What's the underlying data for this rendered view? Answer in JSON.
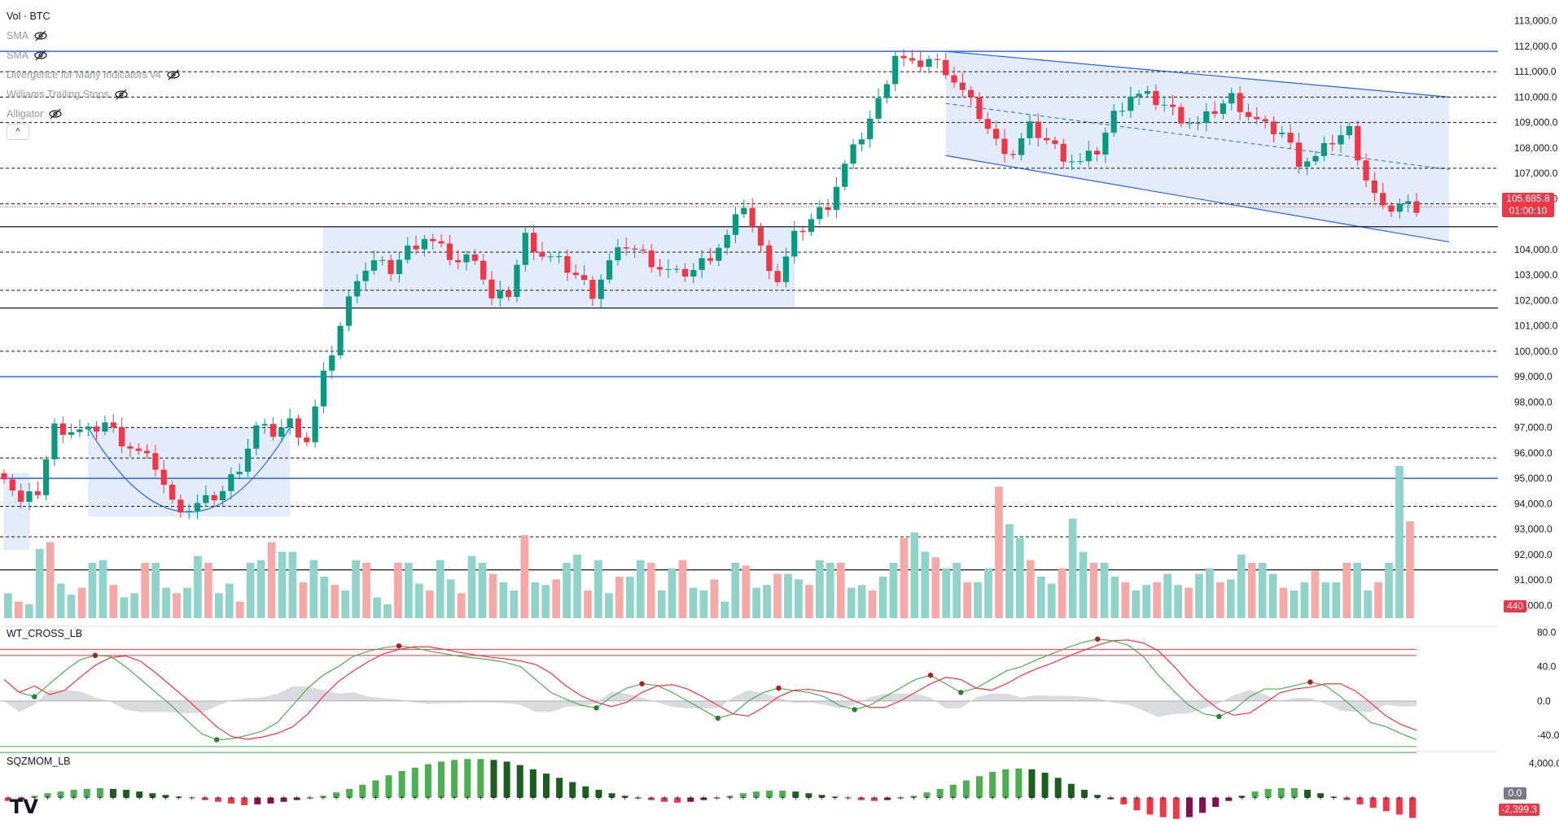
{
  "legend": {
    "main_label": "Vol · BTC",
    "indicators": [
      "SMA",
      "SMA",
      "Divergence for Many Indicators v4",
      "Williams Trailing Stops",
      "Alligator"
    ],
    "collapse_symbol": "^"
  },
  "price_axis": {
    "ticks": [
      "113,000.0",
      "112,000.0",
      "111,000.0",
      "110,000.0",
      "109,000.0",
      "108,000.0",
      "107,000.0",
      "106,000.0",
      "104,000.0",
      "103,000.0",
      "102,000.0",
      "101,000.0",
      "100,000.0",
      "99,000.0",
      "98,000.0",
      "97,000.0",
      "96,000.0",
      "95,000.0",
      "94,000.0",
      "93,000.0",
      "92,000.0",
      "91,000.0",
      "90,000.0"
    ],
    "tick_values": [
      113000,
      112000,
      111000,
      110000,
      109000,
      108000,
      107000,
      106000,
      104000,
      103000,
      102000,
      101000,
      100000,
      99000,
      98000,
      97000,
      96000,
      95000,
      94000,
      93000,
      92000,
      91000,
      90000
    ]
  },
  "last_price": {
    "value": "105,685.8",
    "countdown": "01:00:10",
    "price": 105685.8,
    "color": "#f23645"
  },
  "volume_badge": "440",
  "wt_pane": {
    "title": "WT_CROSS_LB",
    "ticks": [
      "80.0",
      "40.0",
      "0.0",
      "-40.0"
    ],
    "tick_values": [
      80,
      40,
      0,
      -40
    ]
  },
  "sqz_pane": {
    "title": "SQZMOM_LB",
    "ticks": [
      "4,000.0"
    ],
    "badge_zero": "0.0",
    "badge_last": "-2,399.3"
  },
  "logo_text": "TV",
  "colors": {
    "up": "#089981",
    "down": "#f23645",
    "zone_fill": "#cfe0f8",
    "hline_blue": "#2962ff"
  },
  "chart_data": [
    {
      "type": "candlestick",
      "title": "Vol · BTC",
      "ylim": [
        89500,
        113500
      ],
      "horizontal_levels_solid_blue": [
        111800,
        99000,
        95000
      ],
      "horizontal_levels_solid_black": [
        104900,
        101700,
        91400
      ],
      "horizontal_levels_dashed": [
        111000,
        110000,
        109000,
        107200,
        105800,
        103900,
        102400,
        100000,
        97000,
        95800,
        93900,
        92700
      ],
      "price_path": [
        [
          0,
          95200
        ],
        [
          2,
          94000
        ],
        [
          4,
          94500
        ],
        [
          6,
          97000
        ],
        [
          8,
          96900
        ],
        [
          10,
          96800
        ],
        [
          12,
          97200
        ],
        [
          14,
          96500
        ],
        [
          16,
          96000
        ],
        [
          18,
          95500
        ],
        [
          20,
          94000
        ],
        [
          22,
          93800
        ],
        [
          24,
          94100
        ],
        [
          26,
          94500
        ],
        [
          28,
          95500
        ],
        [
          30,
          97000
        ],
        [
          32,
          96800
        ],
        [
          34,
          97200
        ],
        [
          36,
          96500
        ],
        [
          38,
          99000
        ],
        [
          40,
          101000
        ],
        [
          42,
          103000
        ],
        [
          44,
          103500
        ],
        [
          46,
          103200
        ],
        [
          48,
          104000
        ],
        [
          50,
          104500
        ],
        [
          52,
          104000
        ],
        [
          54,
          103500
        ],
        [
          56,
          103800
        ],
        [
          58,
          102000
        ],
        [
          60,
          102300
        ],
        [
          62,
          104500
        ],
        [
          64,
          103800
        ],
        [
          66,
          103500
        ],
        [
          68,
          103000
        ],
        [
          70,
          102300
        ],
        [
          72,
          103500
        ],
        [
          74,
          104200
        ],
        [
          76,
          103800
        ],
        [
          78,
          103300
        ],
        [
          80,
          103000
        ],
        [
          82,
          103200
        ],
        [
          84,
          103800
        ],
        [
          86,
          104500
        ],
        [
          88,
          105800
        ],
        [
          90,
          104000
        ],
        [
          92,
          102800
        ],
        [
          94,
          104500
        ],
        [
          96,
          105200
        ],
        [
          98,
          105800
        ],
        [
          100,
          107300
        ],
        [
          102,
          108500
        ],
        [
          104,
          109800
        ],
        [
          106,
          111700
        ],
        [
          108,
          111200
        ],
        [
          110,
          111500
        ],
        [
          112,
          111100
        ],
        [
          114,
          110200
        ],
        [
          116,
          109300
        ],
        [
          118,
          108200
        ],
        [
          120,
          107800
        ],
        [
          122,
          108800
        ],
        [
          124,
          108300
        ],
        [
          126,
          107700
        ],
        [
          128,
          107400
        ],
        [
          130,
          107900
        ],
        [
          132,
          109300
        ],
        [
          134,
          110100
        ],
        [
          136,
          110000
        ],
        [
          138,
          109700
        ],
        [
          140,
          109200
        ],
        [
          142,
          108900
        ],
        [
          144,
          109500
        ],
        [
          146,
          110000
        ],
        [
          148,
          109300
        ],
        [
          150,
          108800
        ],
        [
          152,
          108600
        ],
        [
          154,
          107500
        ],
        [
          156,
          107600
        ],
        [
          158,
          108300
        ],
        [
          160,
          108700
        ],
        [
          162,
          106800
        ],
        [
          164,
          105500
        ],
        [
          166,
          105800
        ],
        [
          168,
          105686
        ]
      ],
      "zones": [
        {
          "label": "range-left",
          "from": 0,
          "to": 3,
          "low": 92200,
          "high": 95200
        },
        {
          "label": "cup",
          "from": 10,
          "to": 34,
          "low": 93500,
          "high": 97000
        },
        {
          "label": "range-mid",
          "from": 38,
          "to": 94,
          "low": 101700,
          "high": 104900
        },
        {
          "label": "channel",
          "from": 112,
          "to": 168,
          "low": 104700,
          "high": 111800
        }
      ],
      "volume": [
        18,
        12,
        10,
        50,
        55,
        25,
        17,
        22,
        40,
        42,
        24,
        15,
        18,
        40,
        40,
        22,
        18,
        22,
        45,
        40,
        18,
        25,
        12,
        40,
        42,
        55,
        48,
        48,
        26,
        42,
        30,
        24,
        20,
        42,
        40,
        15,
        10,
        40,
        40,
        25,
        20,
        42,
        28,
        18,
        45,
        40,
        32,
        26,
        20,
        60,
        26,
        24,
        28,
        40,
        46,
        20,
        42,
        18,
        30,
        30,
        42,
        40,
        20,
        36,
        42,
        22,
        20,
        28,
        12,
        40,
        38,
        22,
        24,
        32,
        32,
        28,
        24,
        42,
        40,
        40,
        22,
        24,
        20,
        30,
        40,
        58,
        62,
        48,
        44,
        36,
        40,
        26,
        26,
        36,
        95,
        68,
        58,
        42,
        30,
        25,
        36,
        72,
        48,
        40,
        40,
        30,
        26,
        20,
        24,
        26,
        32,
        24,
        22,
        32,
        36,
        26,
        28,
        46,
        40,
        40,
        32,
        22,
        20,
        26,
        34,
        26,
        26,
        40,
        40,
        20,
        26,
        40,
        110,
        70
      ]
    },
    {
      "type": "line",
      "title": "WT_CROSS_LB",
      "ylim": [
        -55,
        85
      ],
      "series": [
        {
          "values": [
            25,
            10,
            5,
            20,
            35,
            48,
            53,
            52,
            40,
            25,
            10,
            -5,
            -22,
            -38,
            -45,
            -44,
            -40,
            -35,
            -25,
            -5,
            15,
            30,
            40,
            52,
            58,
            62,
            64,
            62,
            58,
            55,
            52,
            50,
            48,
            45,
            40,
            25,
            10,
            2,
            -5,
            -8,
            5,
            15,
            20,
            18,
            10,
            0,
            -10,
            -20,
            -15,
            0,
            10,
            15,
            12,
            10,
            5,
            -5,
            -10,
            -5,
            5,
            15,
            25,
            30,
            20,
            10,
            15,
            25,
            35,
            40,
            48,
            55,
            62,
            68,
            72,
            70,
            65,
            52,
            30,
            12,
            -5,
            -15,
            -18,
            -10,
            5,
            14,
            14,
            18,
            22,
            18,
            5,
            -10,
            -25,
            -30,
            -38,
            -45
          ]
        }
      ]
    },
    {
      "type": "bar",
      "title": "SQZMOM_LB",
      "ylim": [
        -3000,
        5000
      ],
      "values": [
        -400,
        -200,
        200,
        500,
        700,
        900,
        1000,
        1100,
        1000,
        900,
        700,
        500,
        300,
        100,
        -100,
        -300,
        -500,
        -700,
        -900,
        -800,
        -700,
        -500,
        -300,
        -100,
        200,
        600,
        1000,
        1500,
        2000,
        2600,
        3100,
        3500,
        3900,
        4200,
        4400,
        4500,
        4500,
        4400,
        4200,
        3800,
        3300,
        2800,
        2300,
        1800,
        1300,
        900,
        500,
        200,
        -100,
        -300,
        -500,
        -600,
        -500,
        -300,
        -100,
        200,
        500,
        700,
        800,
        800,
        700,
        500,
        300,
        100,
        -100,
        -300,
        -400,
        -300,
        -100,
        200,
        600,
        1000,
        1500,
        2000,
        2500,
        3000,
        3300,
        3400,
        3300,
        2900,
        2300,
        1600,
        900,
        300,
        -200,
        -800,
        -1500,
        -2000,
        -2300,
        -2500,
        -2300,
        -1800,
        -1100,
        -400,
        200,
        700,
        1000,
        1100,
        1100,
        900,
        500,
        100,
        -300,
        -800,
        -1200,
        -1600,
        -2000,
        -2399
      ]
    }
  ]
}
